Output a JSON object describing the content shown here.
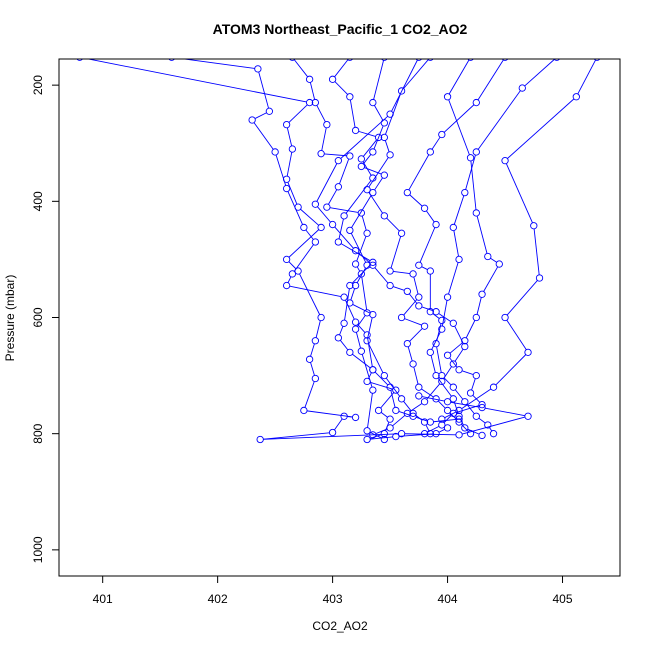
{
  "chart_data": {
    "type": "line",
    "title": "ATOM3 Northeast_Pacific_1 CO2_AO2",
    "xlabel": "CO2_AO2",
    "ylabel": "Pressure (mbar)",
    "xlim": [
      400.62,
      405.5
    ],
    "ylim": [
      1045,
      155
    ],
    "y_reversed": true,
    "x_ticks": [
      401,
      402,
      403,
      404,
      405
    ],
    "y_ticks": [
      200,
      400,
      600,
      800,
      1000
    ],
    "grid": false,
    "legend": "none",
    "markers": "open-circle",
    "series": [
      {
        "values": [
          [
            400.8,
            152
          ],
          [
            402.8,
            230
          ],
          [
            402.6,
            268
          ],
          [
            402.65,
            310
          ],
          [
            402.6,
            362
          ],
          [
            402.7,
            410
          ],
          [
            402.9,
            445
          ],
          [
            402.6,
            500
          ],
          [
            402.7,
            520
          ],
          [
            402.9,
            600
          ],
          [
            402.85,
            640
          ],
          [
            402.8,
            672
          ],
          [
            402.85,
            705
          ],
          [
            402.75,
            760
          ],
          [
            403.2,
            772
          ],
          [
            403.1,
            770
          ],
          [
            403.0,
            798
          ],
          [
            402.37,
            810
          ],
          [
            403.6,
            800
          ],
          [
            404.1,
            802
          ],
          [
            404.7,
            770
          ],
          [
            404.3,
            755
          ],
          [
            404.0,
            745
          ],
          [
            403.75,
            735
          ]
        ]
      },
      {
        "values": [
          [
            401.6,
            152
          ],
          [
            402.35,
            172
          ],
          [
            402.45,
            245
          ],
          [
            402.3,
            260
          ],
          [
            402.5,
            315
          ],
          [
            402.6,
            378
          ],
          [
            402.75,
            445
          ],
          [
            402.85,
            470
          ],
          [
            402.65,
            525
          ],
          [
            402.6,
            545
          ],
          [
            403.1,
            565
          ],
          [
            403.2,
            608
          ],
          [
            403.3,
            630
          ],
          [
            403.35,
            690
          ],
          [
            403.3,
            710
          ],
          [
            403.55,
            725
          ],
          [
            403.4,
            760
          ],
          [
            403.5,
            775
          ],
          [
            403.45,
            800
          ],
          [
            403.3,
            810
          ],
          [
            403.55,
            805
          ],
          [
            403.9,
            800
          ],
          [
            404.0,
            790
          ]
        ]
      },
      {
        "values": [
          [
            402.65,
            152
          ],
          [
            402.8,
            190
          ],
          [
            402.85,
            230
          ],
          [
            402.95,
            268
          ],
          [
            402.9,
            318
          ],
          [
            403.15,
            322
          ],
          [
            403.05,
            375
          ],
          [
            402.95,
            410
          ],
          [
            403.25,
            420
          ],
          [
            403.3,
            455
          ],
          [
            403.2,
            508
          ],
          [
            403.25,
            525
          ],
          [
            403.3,
            592
          ],
          [
            403.2,
            620
          ],
          [
            403.25,
            658
          ],
          [
            403.35,
            725
          ],
          [
            403.3,
            795
          ],
          [
            403.45,
            810
          ]
        ]
      },
      {
        "values": [
          [
            403.15,
            152
          ],
          [
            403.0,
            190
          ],
          [
            403.15,
            220
          ],
          [
            403.2,
            278
          ],
          [
            403.4,
            290
          ],
          [
            403.25,
            327
          ],
          [
            403.35,
            360
          ],
          [
            403.1,
            425
          ],
          [
            403.05,
            470
          ],
          [
            403.35,
            505
          ],
          [
            403.15,
            545
          ],
          [
            403.1,
            610
          ],
          [
            403.05,
            635
          ],
          [
            403.15,
            660
          ],
          [
            403.35,
            690
          ],
          [
            403.5,
            720
          ],
          [
            403.55,
            760
          ],
          [
            403.7,
            770
          ],
          [
            403.85,
            780
          ],
          [
            404.1,
            775
          ]
        ]
      },
      {
        "values": [
          [
            403.45,
            152
          ],
          [
            403.35,
            230
          ],
          [
            403.45,
            265
          ],
          [
            403.35,
            315
          ],
          [
            403.25,
            340
          ],
          [
            403.45,
            355
          ],
          [
            403.35,
            385
          ],
          [
            403.15,
            450
          ],
          [
            403.3,
            510
          ],
          [
            403.2,
            545
          ],
          [
            403.15,
            575
          ],
          [
            403.35,
            595
          ],
          [
            403.3,
            640
          ],
          [
            403.45,
            700
          ],
          [
            403.6,
            740
          ],
          [
            403.7,
            765
          ],
          [
            403.8,
            780
          ],
          [
            403.85,
            800
          ]
        ]
      },
      {
        "values": [
          [
            403.85,
            152
          ],
          [
            403.6,
            210
          ],
          [
            403.45,
            290
          ],
          [
            403.5,
            320
          ],
          [
            403.3,
            380
          ],
          [
            403.45,
            425
          ],
          [
            403.6,
            455
          ],
          [
            403.5,
            520
          ],
          [
            403.7,
            525
          ],
          [
            403.75,
            565
          ],
          [
            403.6,
            600
          ],
          [
            403.8,
            615
          ],
          [
            403.65,
            645
          ],
          [
            403.7,
            680
          ],
          [
            403.75,
            720
          ],
          [
            403.9,
            740
          ],
          [
            404.0,
            760
          ],
          [
            404.1,
            780
          ],
          [
            404.2,
            800
          ]
        ]
      },
      {
        "values": [
          [
            404.5,
            152
          ],
          [
            404.25,
            230
          ],
          [
            403.95,
            285
          ],
          [
            403.85,
            315
          ],
          [
            403.65,
            385
          ],
          [
            403.8,
            412
          ],
          [
            403.9,
            440
          ],
          [
            403.75,
            510
          ],
          [
            403.85,
            520
          ],
          [
            403.85,
            590
          ],
          [
            403.95,
            605
          ],
          [
            403.9,
            645
          ],
          [
            403.95,
            700
          ],
          [
            404.05,
            720
          ],
          [
            404.15,
            745
          ],
          [
            404.25,
            770
          ],
          [
            404.35,
            785
          ],
          [
            404.4,
            800
          ]
        ]
      },
      {
        "values": [
          [
            404.95,
            152
          ],
          [
            404.65,
            205
          ],
          [
            404.25,
            315
          ],
          [
            404.15,
            385
          ],
          [
            404.05,
            445
          ],
          [
            404.1,
            500
          ],
          [
            404.0,
            565
          ],
          [
            403.95,
            620
          ],
          [
            403.85,
            660
          ],
          [
            403.9,
            700
          ],
          [
            404.05,
            740
          ],
          [
            404.1,
            770
          ],
          [
            404.15,
            790
          ],
          [
            404.3,
            803
          ]
        ]
      },
      {
        "values": [
          [
            405.3,
            152
          ],
          [
            405.12,
            220
          ],
          [
            404.5,
            330
          ],
          [
            404.75,
            442
          ],
          [
            404.8,
            532
          ],
          [
            404.5,
            600
          ],
          [
            404.7,
            660
          ],
          [
            404.4,
            720
          ],
          [
            404.1,
            760
          ],
          [
            403.95,
            775
          ]
        ]
      },
      {
        "values": [
          [
            404.2,
            152
          ],
          [
            404.0,
            220
          ],
          [
            404.2,
            325
          ],
          [
            404.25,
            420
          ],
          [
            404.35,
            495
          ],
          [
            404.45,
            508
          ],
          [
            404.3,
            560
          ],
          [
            404.25,
            600
          ],
          [
            404.15,
            640
          ],
          [
            404.0,
            665
          ],
          [
            404.1,
            690
          ],
          [
            404.25,
            700
          ],
          [
            404.2,
            730
          ],
          [
            404.3,
            750
          ],
          [
            404.05,
            765
          ],
          [
            403.95,
            785
          ],
          [
            403.8,
            800
          ]
        ]
      },
      {
        "values": [
          [
            403.75,
            152
          ],
          [
            403.5,
            250
          ],
          [
            403.05,
            330
          ],
          [
            402.85,
            405
          ],
          [
            403.0,
            440
          ],
          [
            403.2,
            485
          ],
          [
            403.35,
            510
          ],
          [
            403.5,
            545
          ],
          [
            403.65,
            555
          ],
          [
            403.75,
            580
          ],
          [
            403.9,
            590
          ],
          [
            404.05,
            610
          ],
          [
            404.15,
            650
          ],
          [
            404.05,
            680
          ],
          [
            403.95,
            710
          ],
          [
            403.8,
            745
          ],
          [
            403.65,
            765
          ],
          [
            403.5,
            790
          ],
          [
            403.35,
            802
          ]
        ]
      }
    ]
  },
  "colors": {
    "series": "#0000ff",
    "axes": "#000000",
    "background": "#ffffff"
  }
}
